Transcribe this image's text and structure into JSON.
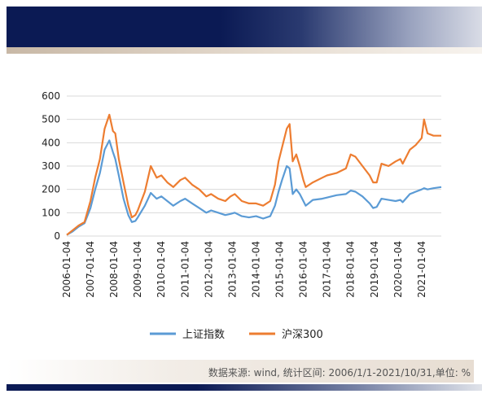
{
  "footer": {
    "source_note": "数据来源: wind, 统计区间: 2006/1/1-2021/10/31,单位: %"
  },
  "colors": {
    "sse_blue": "#5b9bd5",
    "csi_orange": "#ed7d31",
    "grid": "#d9d9d9",
    "banner_navy": "#0b1a54"
  },
  "chart_data": {
    "type": "line",
    "title": "",
    "xlabel": "",
    "ylabel": "",
    "ylim": [
      0,
      600
    ],
    "yticks": [
      0,
      100,
      200,
      300,
      400,
      500,
      600
    ],
    "grid": true,
    "legend_position": "bottom",
    "x_tick_labels": [
      "2006-01-04",
      "2007-01-04",
      "2008-01-04",
      "2009-01-04",
      "2010-01-04",
      "2011-01-04",
      "2012-01-04",
      "2013-01-04",
      "2014-01-04",
      "2015-01-04",
      "2016-01-04",
      "2017-01-04",
      "2018-01-04",
      "2019-01-04",
      "2020-01-04",
      "2021-01-04"
    ],
    "x": [
      2006.0,
      2006.25,
      2006.5,
      2006.75,
      2007.0,
      2007.2,
      2007.4,
      2007.6,
      2007.8,
      2007.95,
      2008.05,
      2008.2,
      2008.4,
      2008.6,
      2008.75,
      2008.9,
      2009.0,
      2009.3,
      2009.55,
      2009.8,
      2010.0,
      2010.25,
      2010.5,
      2010.8,
      2011.0,
      2011.3,
      2011.6,
      2011.9,
      2012.1,
      2012.4,
      2012.7,
      2012.92,
      2013.1,
      2013.4,
      2013.7,
      2014.0,
      2014.3,
      2014.6,
      2014.8,
      2014.95,
      2015.1,
      2015.3,
      2015.42,
      2015.55,
      2015.7,
      2015.85,
      2016.0,
      2016.1,
      2016.4,
      2016.8,
      2017.0,
      2017.4,
      2017.8,
      2018.0,
      2018.2,
      2018.5,
      2018.8,
      2018.95,
      2019.1,
      2019.3,
      2019.6,
      2019.9,
      2020.1,
      2020.2,
      2020.5,
      2020.75,
      2021.0,
      2021.1,
      2021.25,
      2021.5,
      2021.83
    ],
    "series": [
      {
        "name": "上证指数",
        "color": "#5b9bd5",
        "values": [
          5,
          20,
          40,
          55,
          120,
          200,
          270,
          370,
          410,
          360,
          330,
          260,
          160,
          90,
          60,
          65,
          80,
          130,
          185,
          160,
          170,
          150,
          130,
          150,
          160,
          140,
          120,
          100,
          110,
          100,
          90,
          95,
          100,
          85,
          80,
          85,
          75,
          85,
          130,
          190,
          240,
          300,
          290,
          180,
          200,
          180,
          150,
          130,
          155,
          160,
          165,
          175,
          180,
          195,
          190,
          170,
          140,
          120,
          125,
          160,
          155,
          150,
          155,
          145,
          180,
          190,
          200,
          205,
          200,
          205,
          210
        ]
      },
      {
        "name": "沪深300",
        "color": "#ed7d31",
        "values": [
          5,
          25,
          45,
          60,
          150,
          250,
          330,
          460,
          520,
          450,
          440,
          330,
          230,
          130,
          80,
          90,
          110,
          190,
          300,
          250,
          260,
          230,
          210,
          240,
          250,
          220,
          200,
          170,
          180,
          160,
          150,
          170,
          180,
          150,
          140,
          140,
          130,
          150,
          220,
          320,
          380,
          460,
          480,
          320,
          350,
          300,
          240,
          210,
          230,
          250,
          260,
          270,
          290,
          350,
          340,
          300,
          260,
          230,
          230,
          310,
          300,
          320,
          330,
          310,
          370,
          390,
          420,
          500,
          440,
          430,
          430
        ]
      }
    ]
  }
}
